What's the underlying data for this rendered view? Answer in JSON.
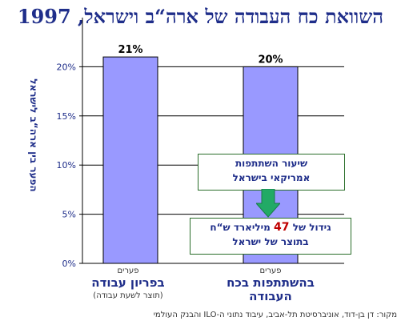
{
  "title": "השוואת כח העבודה של ארה“ב וישראל, 1997",
  "chart_data": {
    "type": "bar",
    "categories": [
      "בפריון עבודה",
      "בהשתתפות בכח העבודה"
    ],
    "category_subtitles": [
      "פערים",
      "פערים"
    ],
    "category_notes": [
      "(תוצר לשעת עבודה)",
      ""
    ],
    "values": [
      21,
      20
    ],
    "value_labels": [
      "21%",
      "20%"
    ],
    "ylabel": "הפער בין ארה“ב לישראל",
    "ylim": [
      0,
      25
    ],
    "yticks": [
      "0%",
      "5%",
      "10%",
      "15%",
      "20%"
    ],
    "ytick_values": [
      0,
      5,
      10,
      15,
      20
    ],
    "bar_color": "#9999ff",
    "grid": true
  },
  "callouts": {
    "top_line1": "שיעור השתתפות",
    "top_line2": "אמריקאי בישראל",
    "bottom_line1_pre": "גידול של",
    "bottom_highlight": "47",
    "bottom_line1_post": "מיליארד ש“ח",
    "bottom_line2": "בתוצר של ישראל",
    "arrow_color": "#22aa66",
    "border_color": "#2a6e2a"
  },
  "source": "מקור: דן בן-דוד, אוניברסיטת תל-אביב, עיבוד נתוני ה-ILO והבנק העולמי"
}
